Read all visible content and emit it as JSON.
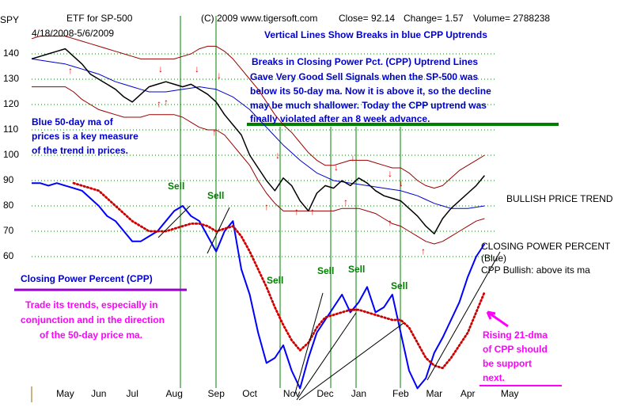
{
  "chart_data": {
    "type": "line",
    "header": {
      "symbol": "SPY",
      "name": "ETF for SP-500",
      "source": "(C) 2009 www.tigersoft.com",
      "close": "Close=  92.14",
      "change": "Change= 1.57",
      "volume": "Volume= 2788238",
      "range": "4/18/2008-5/6/2009"
    },
    "title": "Vertical Lines Show Breaks in blue CPP Uptrends",
    "annotations": {
      "breaks": [
        "Breaks in Closing Power Pct. (CPP) Uptrend Lines",
        "Gave Very Good Sell Signals when the SP-500 was",
        "below its 50-day ma.  Now it is above it, so the decline",
        "may be much shallower.  Today the CPP uptrend was",
        "finally violated after an 8 week advance."
      ],
      "ma": [
        "Blue 50-day ma of",
        "prices is a key measure",
        "of the trend in prices."
      ],
      "bullish": "BULLISH PRICE TREND",
      "cpp_title": [
        "CLOSING POWER PERCENT",
        "(Blue)",
        "CPP Bullish:  above its ma"
      ],
      "cpp_label": "Closing Power Percent (CPP)",
      "trade": [
        "Trade its trends, especially in",
        "conjunction and in the direction",
        "of the 50-day price ma."
      ],
      "rising": [
        "Rising 21-dma",
        "of CPP should",
        "be support",
        "next."
      ],
      "sell": [
        "Sell",
        "Sell",
        "Sell",
        "Sell",
        "Sell",
        "Sell"
      ]
    },
    "categories": [
      null,
      null,
      null,
      null,
      "May",
      null,
      null,
      null,
      "Jun",
      null,
      null,
      null,
      "Jul",
      null,
      null,
      null,
      null,
      "Aug",
      null,
      null,
      null,
      null,
      "Sep",
      null,
      null,
      null,
      "Oct",
      null,
      null,
      null,
      null,
      "Nov",
      null,
      null,
      null,
      "Dec",
      null,
      null,
      null,
      "Jan",
      null,
      null,
      null,
      null,
      "Feb",
      null,
      null,
      null,
      "Mar",
      null,
      null,
      null,
      "Apr",
      null,
      null,
      null,
      null,
      "May",
      null,
      null
    ],
    "ylim": [
      5,
      155
    ],
    "yticks": [
      60,
      70,
      80,
      90,
      100,
      110,
      120,
      130,
      140
    ],
    "grid": true,
    "series": [
      {
        "name": "Upper band",
        "color": "#990000",
        "width": 1,
        "values": [
          146,
          147,
          147,
          147,
          147,
          146,
          145,
          144,
          143,
          142,
          141,
          140,
          139,
          138,
          138,
          138,
          138,
          138,
          139,
          140,
          142,
          143,
          143,
          141,
          138,
          134,
          130,
          126,
          121,
          116,
          112,
          109,
          105,
          101,
          98,
          96,
          96,
          97,
          98,
          98,
          98,
          97,
          96,
          95,
          95,
          93,
          90,
          88,
          87,
          88,
          91,
          94,
          96,
          98,
          100,
          null,
          null,
          null,
          null,
          null
        ]
      },
      {
        "name": "Lower band",
        "color": "#990000",
        "width": 1,
        "values": [
          127,
          127,
          127,
          127,
          127,
          125,
          122,
          120,
          118,
          117,
          116,
          115,
          115,
          115,
          116,
          116,
          116,
          116,
          115,
          113,
          111,
          110,
          110,
          108,
          104,
          100,
          96,
          90,
          85,
          81,
          78,
          78,
          78,
          78,
          78,
          78,
          78,
          79,
          79,
          79,
          78,
          77,
          75,
          73,
          72,
          70,
          68,
          66,
          65,
          66,
          68,
          70,
          72,
          74,
          75,
          null,
          null,
          null,
          null,
          null
        ]
      },
      {
        "name": "50-day ma",
        "color": "#0000cc",
        "width": 1,
        "values": [
          138,
          137.5,
          137,
          136.5,
          136,
          135,
          134,
          133,
          132,
          130.5,
          129,
          128,
          127,
          126,
          125,
          125,
          125,
          125.5,
          126,
          126.5,
          127,
          126.5,
          126,
          124.5,
          123,
          120.5,
          118,
          114.5,
          111,
          107.5,
          104,
          101,
          98,
          95.5,
          93,
          91.5,
          90,
          89.5,
          89,
          88.5,
          88,
          87.5,
          87,
          86.5,
          86,
          85,
          84,
          82.5,
          81,
          80,
          79,
          79,
          79,
          79.5,
          80,
          null,
          null,
          null,
          null,
          null
        ]
      },
      {
        "name": "SP-500",
        "color": "#000000",
        "width": 1.5,
        "values": [
          138,
          139,
          140,
          141,
          142,
          139,
          136,
          132,
          130,
          128,
          126,
          123,
          121,
          124,
          127,
          128,
          129,
          128,
          127,
          128,
          126,
          124,
          121,
          116,
          112,
          108,
          100,
          95,
          90,
          86,
          91,
          88,
          82,
          78,
          85,
          88,
          87,
          90,
          88,
          91,
          89,
          86,
          84,
          83,
          82,
          79,
          76,
          72,
          69,
          75,
          79,
          82,
          85,
          88,
          92,
          null,
          null,
          null,
          null,
          null
        ]
      },
      {
        "name": "CPP",
        "color": "#0000ff",
        "width": 2,
        "values": [
          89,
          89,
          88,
          89,
          88,
          87,
          86,
          83,
          80,
          76,
          74,
          70,
          66,
          66,
          68,
          70,
          74,
          78,
          80,
          76,
          74,
          68,
          62,
          70,
          74,
          55,
          45,
          30,
          18,
          20,
          25,
          15,
          8,
          20,
          30,
          35,
          40,
          45,
          38,
          42,
          48,
          38,
          40,
          45,
          30,
          15,
          8,
          12,
          22,
          28,
          35,
          42,
          52,
          60,
          65,
          null,
          null,
          null,
          null,
          null
        ]
      },
      {
        "name": "CPP 21-dma",
        "color": "#cc0000",
        "width": 2,
        "dotted": true,
        "values": [
          null,
          null,
          null,
          null,
          null,
          89,
          88,
          87,
          86,
          83,
          80,
          77,
          74,
          72,
          70,
          70,
          70,
          71,
          72,
          73,
          73,
          72,
          70,
          71,
          72,
          68,
          62,
          55,
          48,
          40,
          33,
          27,
          23,
          26,
          32,
          36,
          37,
          38,
          39,
          39,
          38,
          37,
          36,
          35,
          35,
          32,
          26,
          20,
          17,
          16,
          20,
          25,
          30,
          38,
          46,
          null,
          null,
          null,
          null,
          null
        ]
      }
    ]
  }
}
